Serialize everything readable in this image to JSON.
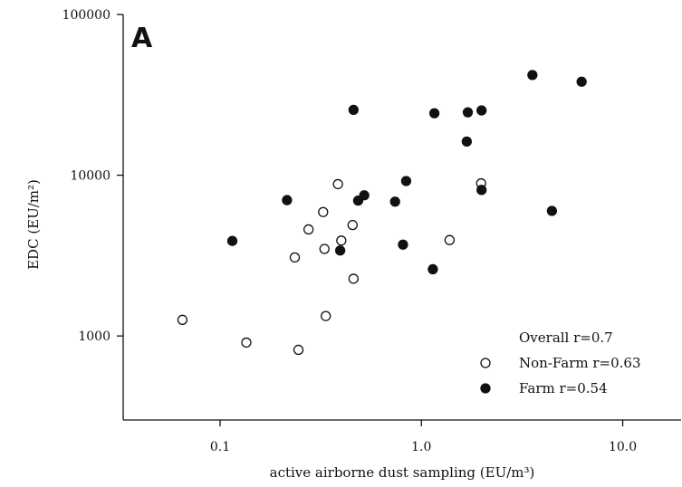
{
  "chart_data": {
    "type": "scatter",
    "panel_label": "A",
    "xlabel": "active airborne dust sampling (EU/m³)",
    "ylabel": "EDC (EU/m²)",
    "xscale": "log",
    "yscale": "log",
    "xlim": [
      0.033,
      19.5
    ],
    "ylim": [
      300,
      100000
    ],
    "x_ticks": [
      0.1,
      1.0,
      10.0
    ],
    "x_tick_labels": [
      "0.1",
      "1.0",
      "10.0"
    ],
    "y_ticks": [
      1000,
      10000,
      100000
    ],
    "y_tick_labels": [
      "1000",
      "10000",
      "100000"
    ],
    "grid": false,
    "legend": {
      "position": "bottom-right",
      "title": "Overall r=0.7",
      "entries": [
        {
          "label": "Non-Farm r=0.63",
          "marker": "open-circle"
        },
        {
          "label": "Farm r=0.54",
          "marker": "filled-circle"
        }
      ]
    },
    "series": [
      {
        "name": "Non-Farm r=0.63",
        "marker": "open-circle",
        "points": [
          {
            "x": 0.065,
            "y": 1260
          },
          {
            "x": 0.135,
            "y": 910
          },
          {
            "x": 0.235,
            "y": 3080
          },
          {
            "x": 0.245,
            "y": 820
          },
          {
            "x": 0.275,
            "y": 4600
          },
          {
            "x": 0.325,
            "y": 5900
          },
          {
            "x": 0.33,
            "y": 3480
          },
          {
            "x": 0.335,
            "y": 1330
          },
          {
            "x": 0.385,
            "y": 8800
          },
          {
            "x": 0.4,
            "y": 3920
          },
          {
            "x": 0.455,
            "y": 4900
          },
          {
            "x": 0.46,
            "y": 2270
          },
          {
            "x": 1.38,
            "y": 3950
          },
          {
            "x": 1.98,
            "y": 8900
          }
        ]
      },
      {
        "name": "Farm r=0.54",
        "marker": "filled-circle",
        "points": [
          {
            "x": 0.115,
            "y": 3900
          },
          {
            "x": 0.215,
            "y": 7000
          },
          {
            "x": 0.395,
            "y": 3400
          },
          {
            "x": 0.46,
            "y": 25500
          },
          {
            "x": 0.485,
            "y": 6950
          },
          {
            "x": 0.52,
            "y": 7500
          },
          {
            "x": 0.74,
            "y": 6850
          },
          {
            "x": 0.81,
            "y": 3700
          },
          {
            "x": 0.84,
            "y": 9200
          },
          {
            "x": 1.14,
            "y": 2600
          },
          {
            "x": 1.16,
            "y": 24300
          },
          {
            "x": 1.68,
            "y": 16200
          },
          {
            "x": 1.7,
            "y": 24600
          },
          {
            "x": 1.99,
            "y": 25300
          },
          {
            "x": 1.99,
            "y": 8100
          },
          {
            "x": 3.56,
            "y": 42000
          },
          {
            "x": 4.45,
            "y": 6000
          },
          {
            "x": 6.25,
            "y": 38200
          }
        ]
      }
    ]
  }
}
